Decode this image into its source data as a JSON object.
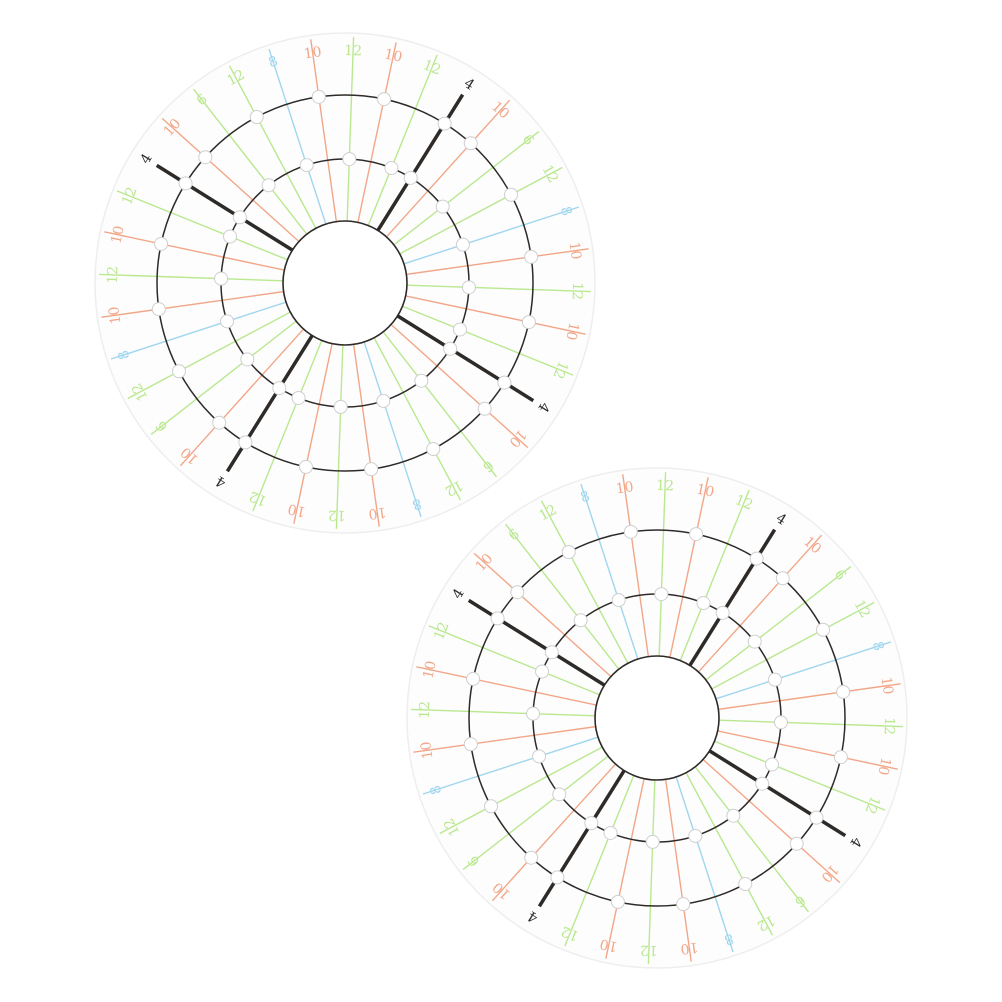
{
  "colors": {
    "disk": "#fdfdfd",
    "disk_edge": "#eeeeee",
    "black_line": "#2e2a28",
    "orange": "#f2a688",
    "green": "#b9e88f",
    "blue": "#9fd6ee",
    "bead": "#ffffff"
  },
  "sector_lines": [
    {
      "label": "10",
      "color": "orange"
    },
    {
      "label": "6",
      "color": "green"
    },
    {
      "label": "12",
      "color": "green"
    },
    {
      "label": "8",
      "color": "blue"
    },
    {
      "label": "10",
      "color": "orange"
    },
    {
      "label": "12",
      "color": "green"
    },
    {
      "label": "10",
      "color": "orange"
    },
    {
      "label": "12",
      "color": "green"
    }
  ],
  "divider_label": "4",
  "disks": [
    {
      "name": "disk-top-left"
    },
    {
      "name": "disk-bottom-right"
    }
  ]
}
